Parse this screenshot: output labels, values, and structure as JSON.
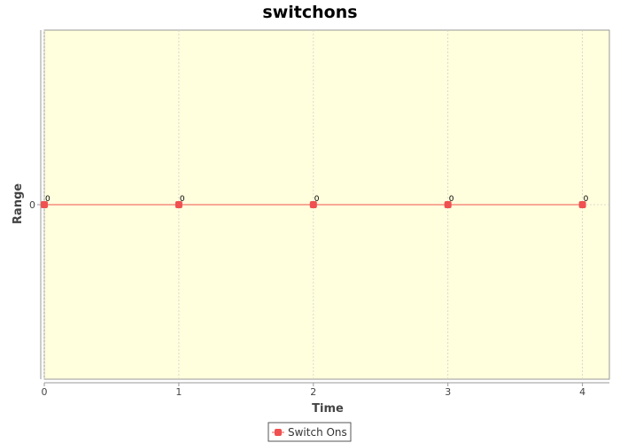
{
  "colors": {
    "plot_background": "#ffffdd",
    "series": "#f05050",
    "grid": "#d0d0d0",
    "axis": "#999999"
  },
  "chart_data": {
    "type": "line",
    "title": "switchons",
    "xlabel": "Time",
    "ylabel": "Range",
    "xlim": [
      0,
      4.2
    ],
    "ylim": [
      -1,
      1
    ],
    "x_ticks": [
      0,
      1,
      2,
      3,
      4
    ],
    "y_ticks": [
      0
    ],
    "grid": true,
    "legend_position": "bottom-center",
    "series": [
      {
        "name": "Switch Ons",
        "x": [
          0,
          1,
          2,
          3,
          4
        ],
        "y": [
          0,
          0,
          0,
          0,
          0
        ],
        "labels": [
          "0",
          "0",
          "0",
          "0",
          "0"
        ]
      }
    ]
  }
}
